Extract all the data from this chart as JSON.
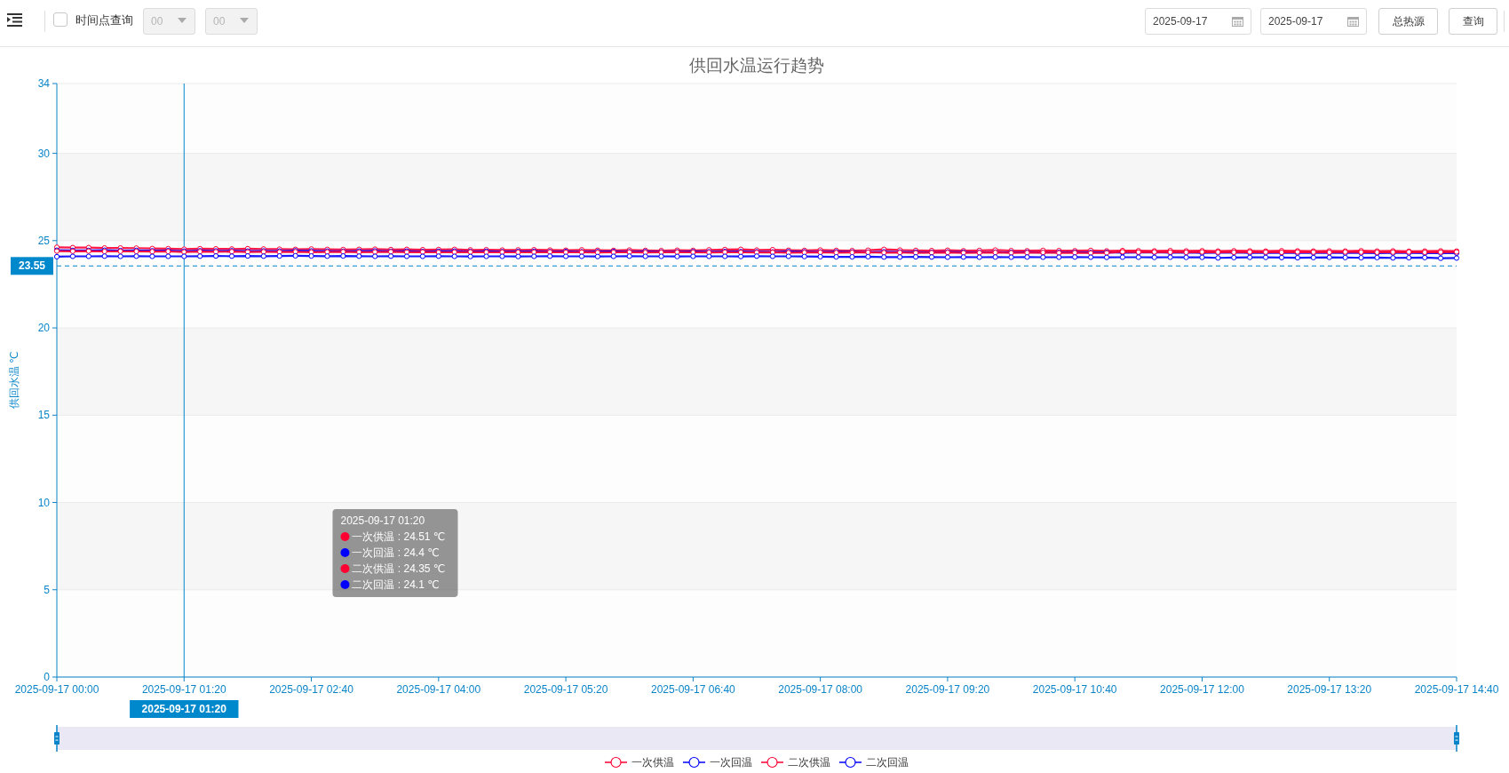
{
  "chart_data": {
    "type": "line",
    "title": "供回水温运行趋势",
    "ylabel": "供回水温 ℃",
    "x": [
      "2025-09-17T00:00",
      "2025-09-17T00:10",
      "2025-09-17T00:20",
      "2025-09-17T00:30",
      "2025-09-17T00:40",
      "2025-09-17T00:50",
      "2025-09-17T01:00",
      "2025-09-17T01:10",
      "2025-09-17T01:20",
      "2025-09-17T01:30",
      "2025-09-17T01:40",
      "2025-09-17T01:50",
      "2025-09-17T02:00",
      "2025-09-17T02:10",
      "2025-09-17T02:20",
      "2025-09-17T02:30",
      "2025-09-17T02:40",
      "2025-09-17T02:50",
      "2025-09-17T03:00",
      "2025-09-17T03:10",
      "2025-09-17T03:20",
      "2025-09-17T03:30",
      "2025-09-17T03:40",
      "2025-09-17T03:50",
      "2025-09-17T04:00",
      "2025-09-17T04:10",
      "2025-09-17T04:20",
      "2025-09-17T04:30",
      "2025-09-17T04:40",
      "2025-09-17T04:50",
      "2025-09-17T05:00",
      "2025-09-17T05:10",
      "2025-09-17T05:20",
      "2025-09-17T05:30",
      "2025-09-17T05:40",
      "2025-09-17T05:50",
      "2025-09-17T06:00",
      "2025-09-17T06:10",
      "2025-09-17T06:20",
      "2025-09-17T06:30",
      "2025-09-17T06:40",
      "2025-09-17T06:50",
      "2025-09-17T07:00",
      "2025-09-17T07:10",
      "2025-09-17T07:20",
      "2025-09-17T07:30",
      "2025-09-17T07:40",
      "2025-09-17T07:50",
      "2025-09-17T08:00",
      "2025-09-17T08:10",
      "2025-09-17T08:20",
      "2025-09-17T08:30",
      "2025-09-17T08:40",
      "2025-09-17T08:50",
      "2025-09-17T09:00",
      "2025-09-17T09:10",
      "2025-09-17T09:20",
      "2025-09-17T09:30",
      "2025-09-17T09:40",
      "2025-09-17T09:50",
      "2025-09-17T10:00",
      "2025-09-17T10:10",
      "2025-09-17T10:20",
      "2025-09-17T10:30",
      "2025-09-17T10:40",
      "2025-09-17T10:50",
      "2025-09-17T11:00",
      "2025-09-17T11:10",
      "2025-09-17T11:20",
      "2025-09-17T11:30",
      "2025-09-17T11:40",
      "2025-09-17T11:50",
      "2025-09-17T12:00",
      "2025-09-17T12:10",
      "2025-09-17T12:20",
      "2025-09-17T12:30",
      "2025-09-17T12:40",
      "2025-09-17T12:50",
      "2025-09-17T13:00",
      "2025-09-17T13:10",
      "2025-09-17T13:20",
      "2025-09-17T13:30",
      "2025-09-17T13:40",
      "2025-09-17T13:50",
      "2025-09-17T14:00",
      "2025-09-17T14:10",
      "2025-09-17T14:20",
      "2025-09-17T14:30",
      "2025-09-17T14:40"
    ],
    "series": [
      {
        "name": "一次供温",
        "color": "#ff0033",
        "values": [
          24.62,
          24.6,
          24.6,
          24.58,
          24.58,
          24.57,
          24.55,
          24.54,
          24.51,
          24.54,
          24.53,
          24.52,
          24.54,
          24.52,
          24.51,
          24.5,
          24.52,
          24.5,
          24.49,
          24.5,
          24.51,
          24.49,
          24.5,
          24.48,
          24.49,
          24.5,
          24.47,
          24.48,
          24.46,
          24.47,
          24.48,
          24.46,
          24.45,
          24.47,
          24.45,
          24.44,
          24.46,
          24.44,
          24.43,
          24.45,
          24.44,
          24.47,
          24.49,
          24.5,
          24.46,
          24.48,
          24.45,
          24.44,
          24.46,
          24.44,
          24.43,
          24.45,
          24.5,
          24.46,
          24.44,
          24.43,
          24.45,
          24.42,
          24.44,
          24.46,
          24.43,
          24.42,
          24.44,
          24.43,
          24.42,
          24.44,
          24.41,
          24.43,
          24.42,
          24.41,
          24.43,
          24.41,
          24.42,
          24.4,
          24.42,
          24.41,
          24.4,
          24.42,
          24.41,
          24.4,
          24.41,
          24.4,
          24.42,
          24.4,
          24.41,
          24.39,
          24.4,
          24.41,
          24.4
        ]
      },
      {
        "name": "一次回温",
        "color": "#0000ff",
        "values": [
          24.45,
          24.44,
          24.44,
          24.45,
          24.43,
          24.44,
          24.42,
          24.43,
          24.4,
          24.42,
          24.41,
          24.42,
          24.4,
          24.41,
          24.4,
          24.42,
          24.41,
          24.4,
          24.39,
          24.4,
          24.41,
          24.39,
          24.4,
          24.38,
          24.39,
          24.4,
          24.38,
          24.39,
          24.37,
          24.38,
          24.39,
          24.37,
          24.38,
          24.36,
          24.37,
          24.38,
          24.36,
          24.37,
          24.35,
          24.36,
          24.37,
          24.36,
          24.38,
          24.37,
          24.36,
          24.35,
          24.37,
          24.36,
          24.35,
          24.36,
          24.35,
          24.34,
          24.36,
          24.35,
          24.34,
          24.33,
          24.35,
          24.34,
          24.33,
          24.34,
          24.33,
          24.34,
          24.32,
          24.33,
          24.34,
          24.32,
          24.33,
          24.31,
          24.32,
          24.33,
          24.31,
          24.32,
          24.3,
          24.31,
          24.32,
          24.3,
          24.31,
          24.3,
          24.29,
          24.3,
          24.31,
          24.29,
          24.3,
          24.28,
          24.29,
          24.3,
          24.28,
          24.29,
          24.28
        ]
      },
      {
        "name": "二次供温",
        "color": "#ff0033",
        "values": [
          24.4,
          24.39,
          24.4,
          24.38,
          24.39,
          24.38,
          24.37,
          24.38,
          24.35,
          24.37,
          24.36,
          24.37,
          24.35,
          24.36,
          24.35,
          24.36,
          24.34,
          24.35,
          24.36,
          24.34,
          24.35,
          24.36,
          24.34,
          24.35,
          24.33,
          24.34,
          24.35,
          24.33,
          24.34,
          24.33,
          24.34,
          24.35,
          24.33,
          24.34,
          24.32,
          24.33,
          24.34,
          24.32,
          24.33,
          24.34,
          24.33,
          24.32,
          24.34,
          24.33,
          24.32,
          24.33,
          24.31,
          24.32,
          24.33,
          24.31,
          24.32,
          24.33,
          24.31,
          24.32,
          24.3,
          24.31,
          24.32,
          24.3,
          24.31,
          24.32,
          24.3,
          24.31,
          24.32,
          24.3,
          24.31,
          24.29,
          24.3,
          24.36,
          24.34,
          24.35,
          24.34,
          24.33,
          24.35,
          24.34,
          24.33,
          24.35,
          24.34,
          24.33,
          24.35,
          24.34,
          24.33,
          24.35,
          24.34,
          24.33,
          24.34,
          24.35,
          24.33,
          24.34,
          24.35
        ]
      },
      {
        "name": "二次回温",
        "color": "#0000ff",
        "values": [
          24.08,
          24.1,
          24.1,
          24.11,
          24.1,
          24.11,
          24.1,
          24.1,
          24.1,
          24.11,
          24.12,
          24.11,
          24.12,
          24.11,
          24.12,
          24.13,
          24.12,
          24.11,
          24.12,
          24.11,
          24.1,
          24.11,
          24.1,
          24.1,
          24.11,
          24.1,
          24.09,
          24.1,
          24.1,
          24.09,
          24.1,
          24.11,
          24.1,
          24.1,
          24.09,
          24.1,
          24.11,
          24.1,
          24.1,
          24.09,
          24.1,
          24.1,
          24.1,
          24.09,
          24.11,
          24.1,
          24.1,
          24.09,
          24.08,
          24.07,
          24.07,
          24.08,
          24.06,
          24.06,
          24.07,
          24.06,
          24.05,
          24.06,
          24.05,
          24.06,
          24.05,
          24.06,
          24.05,
          24.05,
          24.06,
          24.05,
          24.04,
          24.05,
          24.05,
          24.04,
          24.05,
          24.04,
          24.04,
          24.01,
          24.03,
          24.04,
          24.04,
          24.03,
          24.02,
          24.03,
          24.04,
          24.03,
          24.02,
          24.03,
          24.01,
          24.02,
          24.03,
          23.99,
          24.0
        ]
      }
    ],
    "xlim": [
      "2025-09-17T00:00",
      "2025-09-17T14:40"
    ],
    "xticks": [
      {
        "value": "2025-09-17T00:00",
        "label": "2025-09-17 00:00"
      },
      {
        "value": "2025-09-17T01:20",
        "label": "2025-09-17 01:20"
      },
      {
        "value": "2025-09-17T02:40",
        "label": "2025-09-17 02:40"
      },
      {
        "value": "2025-09-17T04:00",
        "label": "2025-09-17 04:00"
      },
      {
        "value": "2025-09-17T05:20",
        "label": "2025-09-17 05:20"
      },
      {
        "value": "2025-09-17T06:40",
        "label": "2025-09-17 06:40"
      },
      {
        "value": "2025-09-17T08:00",
        "label": "2025-09-17 08:00"
      },
      {
        "value": "2025-09-17T09:20",
        "label": "2025-09-17 09:20"
      },
      {
        "value": "2025-09-17T10:40",
        "label": "2025-09-17 10:40"
      },
      {
        "value": "2025-09-17T12:00",
        "label": "2025-09-17 12:00"
      },
      {
        "value": "2025-09-17T13:20",
        "label": "2025-09-17 13:20"
      },
      {
        "value": "2025-09-17T14:40",
        "label": "2025-09-17 14:40"
      }
    ],
    "ylim": [
      0,
      34
    ],
    "yticks": [
      0,
      5,
      10,
      15,
      20,
      25,
      30,
      34
    ],
    "ref_lines": [
      {
        "axis": "x",
        "value": "2025-09-17T01:20",
        "label": "2025-09-17 01:20",
        "color": "#0088cc",
        "line_style": "solid"
      },
      {
        "axis": "y",
        "value": 23.55,
        "label": "23.55",
        "color": "#0088cc",
        "line_style": "dashed"
      }
    ],
    "annotations": [
      "时间点查询",
      "00",
      "00",
      "2025-09-17",
      "2025-09-17",
      "总热源",
      "查询",
      "2025-09-17 01:20",
      "一次供温 : 24.51 ℃",
      "一次回温 : 24.4 ℃",
      "二次供温 : 24.35 ℃",
      "二次回温 : 24.1 ℃"
    ],
    "grid": "y",
    "legend": "bottom",
    "marker": "circle"
  }
}
